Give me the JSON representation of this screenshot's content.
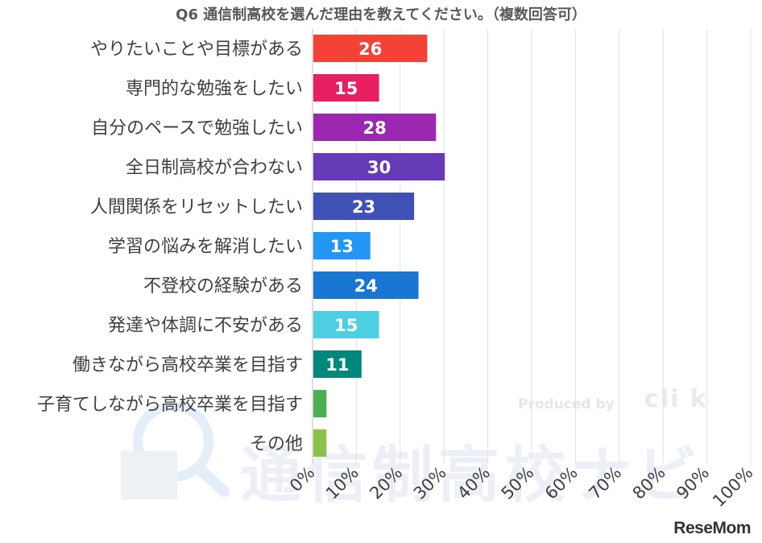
{
  "chart_data": {
    "type": "bar",
    "orientation": "horizontal",
    "title": "Q6 通信制高校を選んだ理由を教えてください。（複数回答可）",
    "categories": [
      "やりたいことや目標がある",
      "専門的な勉強をしたい",
      "自分のペースで勉強したい",
      "全日制高校が合わない",
      "人間関係をリセットしたい",
      "学習の悩みを解消したい",
      "不登校の経験がある",
      "発達や体調に不安がある",
      "働きながら高校卒業を目指す",
      "子育てしながら高校卒業を目指す",
      "その他"
    ],
    "values": [
      26,
      15,
      28,
      30,
      23,
      13,
      24,
      15,
      11,
      3,
      3
    ],
    "data_labels": [
      "26",
      "15",
      "28",
      "30",
      "23",
      "13",
      "24",
      "15",
      "11",
      "",
      ""
    ],
    "colors": [
      "#f44336",
      "#e91e63",
      "#9c27b0",
      "#673ab7",
      "#3f51b5",
      "#2196f3",
      "#1976d2",
      "#4dd0e1",
      "#00897b",
      "#4caf50",
      "#8bc34a"
    ],
    "xlim": [
      0,
      100
    ],
    "xticks": [
      "0%",
      "10%",
      "20%",
      "30%",
      "40%",
      "50%",
      "60%",
      "70%",
      "80%",
      "90%",
      "100%"
    ],
    "grid": true
  },
  "watermark": {
    "text": "通信制高校ナビ",
    "produced_by": "Produced by",
    "brand": "cli k"
  },
  "credit": "ReseMom"
}
